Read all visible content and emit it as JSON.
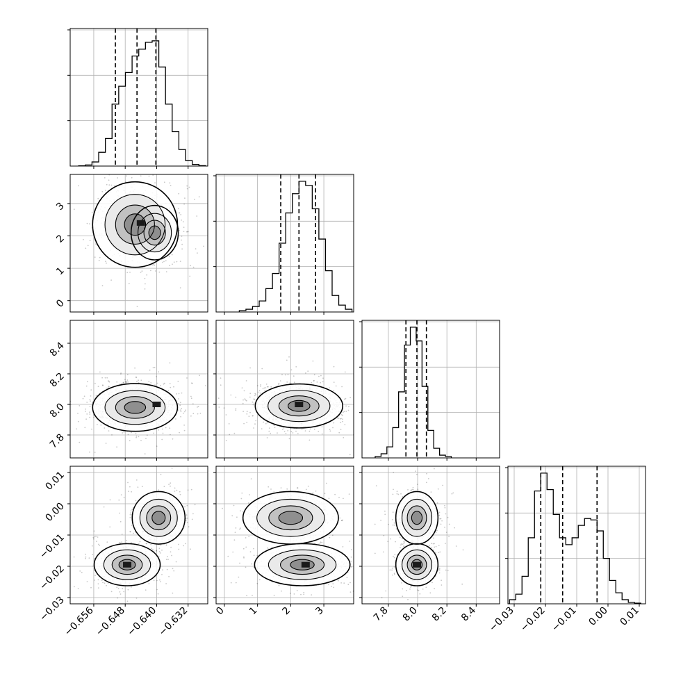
{
  "chart_data": [
    {
      "type": "histogram",
      "panel": "diag-0",
      "variable_index": 0,
      "xlim": [
        -0.662,
        -0.627
      ],
      "bins": [
        -0.659,
        -0.6573,
        -0.6556,
        -0.6539,
        -0.6522,
        -0.6505,
        -0.6488,
        -0.6471,
        -0.6454,
        -0.6437,
        -0.642,
        -0.6403,
        -0.6386,
        -0.6369,
        -0.6352,
        -0.6335,
        -0.6318,
        -0.6301,
        -0.6284
      ],
      "values": [
        0.002,
        0.008,
        0.03,
        0.1,
        0.2,
        0.45,
        0.58,
        0.68,
        0.8,
        0.85,
        0.9,
        0.91,
        0.72,
        0.45,
        0.25,
        0.12,
        0.04,
        0.012,
        0.003
      ],
      "quantile_lines": [
        -0.6505,
        -0.645,
        -0.6402
      ],
      "y_gridlines_fraction": [
        0.33,
        0.66,
        0.99
      ]
    },
    {
      "type": "scatter_density",
      "panel": "row1-col0",
      "x_variable": 0,
      "y_variable": 1,
      "xlim": [
        -0.662,
        -0.627
      ],
      "ylim": [
        -0.35,
        3.9
      ],
      "y_ticks": [
        "0",
        "1",
        "2",
        "3"
      ],
      "y_tick_values": [
        0,
        1,
        2,
        3
      ],
      "cores": [
        {
          "x": -0.6455,
          "y": 2.35,
          "sx": 0.0045,
          "sy": 0.55
        },
        {
          "x": -0.6405,
          "y": 2.1,
          "sx": 0.0025,
          "sy": 0.35
        }
      ],
      "peak": {
        "x": -0.644,
        "y": 2.4
      }
    },
    {
      "type": "histogram",
      "panel": "diag-1",
      "variable_index": 1,
      "xlim": [
        -0.25,
        3.9
      ],
      "x_ticks": [
        "0",
        "1",
        "2",
        "3"
      ],
      "x_tick_values": [
        0,
        1,
        2,
        3
      ],
      "bins": [
        0.55,
        0.75,
        0.95,
        1.15,
        1.35,
        1.55,
        1.75,
        1.95,
        2.15,
        2.35,
        2.55,
        2.75,
        2.95,
        3.15,
        3.35,
        3.55,
        3.75
      ],
      "values": [
        0.01,
        0.02,
        0.04,
        0.08,
        0.17,
        0.28,
        0.5,
        0.72,
        0.86,
        0.95,
        0.92,
        0.75,
        0.53,
        0.3,
        0.12,
        0.05,
        0.02
      ],
      "quantile_lines": [
        1.7,
        2.25,
        2.75
      ]
    },
    {
      "type": "scatter_density",
      "panel": "row2-col0",
      "x_variable": 0,
      "y_variable": 2,
      "xlim": [
        -0.662,
        -0.627
      ],
      "ylim": [
        7.65,
        8.55
      ],
      "y_ticks": [
        "7.8",
        "8.0",
        "8.2",
        "8.4"
      ],
      "y_tick_values": [
        7.8,
        8.0,
        8.2,
        8.4
      ],
      "cores": [
        {
          "x": -0.6455,
          "y": 7.98,
          "sx": 0.0045,
          "sy": 0.065
        }
      ],
      "peak": {
        "x": -0.64,
        "y": 8.0
      }
    },
    {
      "type": "scatter_density",
      "panel": "row2-col1",
      "x_variable": 1,
      "y_variable": 2,
      "xlim": [
        -0.25,
        3.9
      ],
      "ylim": [
        7.65,
        8.55
      ],
      "cores": [
        {
          "x": 2.25,
          "y": 7.99,
          "sx": 0.55,
          "sy": 0.06
        }
      ],
      "peak": {
        "x": 2.25,
        "y": 8.0
      }
    },
    {
      "type": "histogram",
      "panel": "diag-2",
      "variable_index": 2,
      "xlim": [
        7.62,
        8.56
      ],
      "x_ticks": [
        "7.8",
        "8.0",
        "8.2",
        "8.4"
      ],
      "x_tick_values": [
        7.8,
        8.0,
        8.2,
        8.4
      ],
      "bins": [
        7.73,
        7.77,
        7.81,
        7.85,
        7.89,
        7.93,
        7.97,
        8.01,
        8.05,
        8.09,
        8.13,
        8.17,
        8.21
      ],
      "values": [
        0.01,
        0.03,
        0.08,
        0.22,
        0.48,
        0.82,
        0.95,
        0.85,
        0.52,
        0.2,
        0.07,
        0.02,
        0.01
      ],
      "quantile_lines": [
        7.92,
        7.995,
        8.06
      ]
    },
    {
      "type": "scatter_density",
      "panel": "row3-col0",
      "x_variable": 0,
      "y_variable": 3,
      "xlim": [
        -0.662,
        -0.627
      ],
      "ylim": [
        -0.032,
        0.012
      ],
      "y_ticks": [
        "−0.03",
        "−0.02",
        "−0.01",
        "0.00",
        "0.01"
      ],
      "y_tick_values": [
        -0.03,
        -0.02,
        -0.01,
        0.0,
        0.01
      ],
      "cores": [
        {
          "x": -0.6475,
          "y": -0.0195,
          "sx": 0.0035,
          "sy": 0.0028
        },
        {
          "x": -0.6395,
          "y": -0.0045,
          "sx": 0.0028,
          "sy": 0.0035
        }
      ],
      "peak": {
        "x": -0.6475,
        "y": -0.0195
      }
    },
    {
      "type": "scatter_density",
      "panel": "row3-col1",
      "x_variable": 1,
      "y_variable": 3,
      "xlim": [
        -0.25,
        3.9
      ],
      "ylim": [
        -0.032,
        0.012
      ],
      "cores": [
        {
          "x": 2.0,
          "y": -0.0045,
          "sx": 0.6,
          "sy": 0.0035
        },
        {
          "x": 2.35,
          "y": -0.0195,
          "sx": 0.6,
          "sy": 0.0028
        }
      ],
      "peak": {
        "x": 2.45,
        "y": -0.0195
      }
    },
    {
      "type": "scatter_density",
      "panel": "row3-col2",
      "x_variable": 2,
      "y_variable": 3,
      "xlim": [
        7.62,
        8.56
      ],
      "ylim": [
        -0.032,
        0.012
      ],
      "cores": [
        {
          "x": 7.995,
          "y": -0.0045,
          "sx": 0.06,
          "sy": 0.0035
        },
        {
          "x": 7.995,
          "y": -0.0195,
          "sx": 0.06,
          "sy": 0.0028
        }
      ],
      "peak": {
        "x": 7.995,
        "y": -0.0195
      }
    },
    {
      "type": "histogram",
      "panel": "diag-3",
      "variable_index": 3,
      "xlim": [
        -0.032,
        0.012
      ],
      "x_ticks": [
        "−0.03",
        "−0.02",
        "−0.01",
        "0.00",
        "0.01"
      ],
      "x_tick_values": [
        -0.03,
        -0.02,
        -0.01,
        0.0,
        0.01
      ],
      "bins": [
        -0.0305,
        -0.0285,
        -0.0265,
        -0.0245,
        -0.0225,
        -0.0205,
        -0.0185,
        -0.0165,
        -0.0145,
        -0.0125,
        -0.0105,
        -0.0085,
        -0.0065,
        -0.0045,
        -0.0025,
        -0.0005,
        0.0015,
        0.0035,
        0.0055,
        0.0075,
        0.0095
      ],
      "values": [
        0.03,
        0.07,
        0.2,
        0.48,
        0.82,
        0.95,
        0.83,
        0.65,
        0.48,
        0.43,
        0.48,
        0.57,
        0.62,
        0.61,
        0.53,
        0.33,
        0.17,
        0.08,
        0.03,
        0.01,
        0.005
      ],
      "quantile_lines": [
        -0.0215,
        -0.0145,
        -0.0035
      ]
    }
  ],
  "x_axis_tick_labels": {
    "col0": [
      "−0.656",
      "−0.648",
      "−0.640",
      "−0.632"
    ],
    "col1": [
      "0",
      "1",
      "2",
      "3"
    ],
    "col2": [
      "7.8",
      "8.0",
      "8.2",
      "8.4"
    ],
    "col3": [
      "−0.03",
      "−0.02",
      "−0.01",
      "0.00",
      "0.01"
    ]
  },
  "x_axis_tick_values": {
    "col0": [
      -0.656,
      -0.648,
      -0.64,
      -0.632
    ],
    "col1": [
      0,
      1,
      2,
      3
    ],
    "col2": [
      7.8,
      8.0,
      8.2,
      8.4
    ],
    "col3": [
      -0.03,
      -0.02,
      -0.01,
      0.0,
      0.01
    ]
  },
  "colors": {
    "scatter": "#000000",
    "contour": "#000000",
    "grid": "#b0b0b0",
    "histogram": "#000000"
  }
}
